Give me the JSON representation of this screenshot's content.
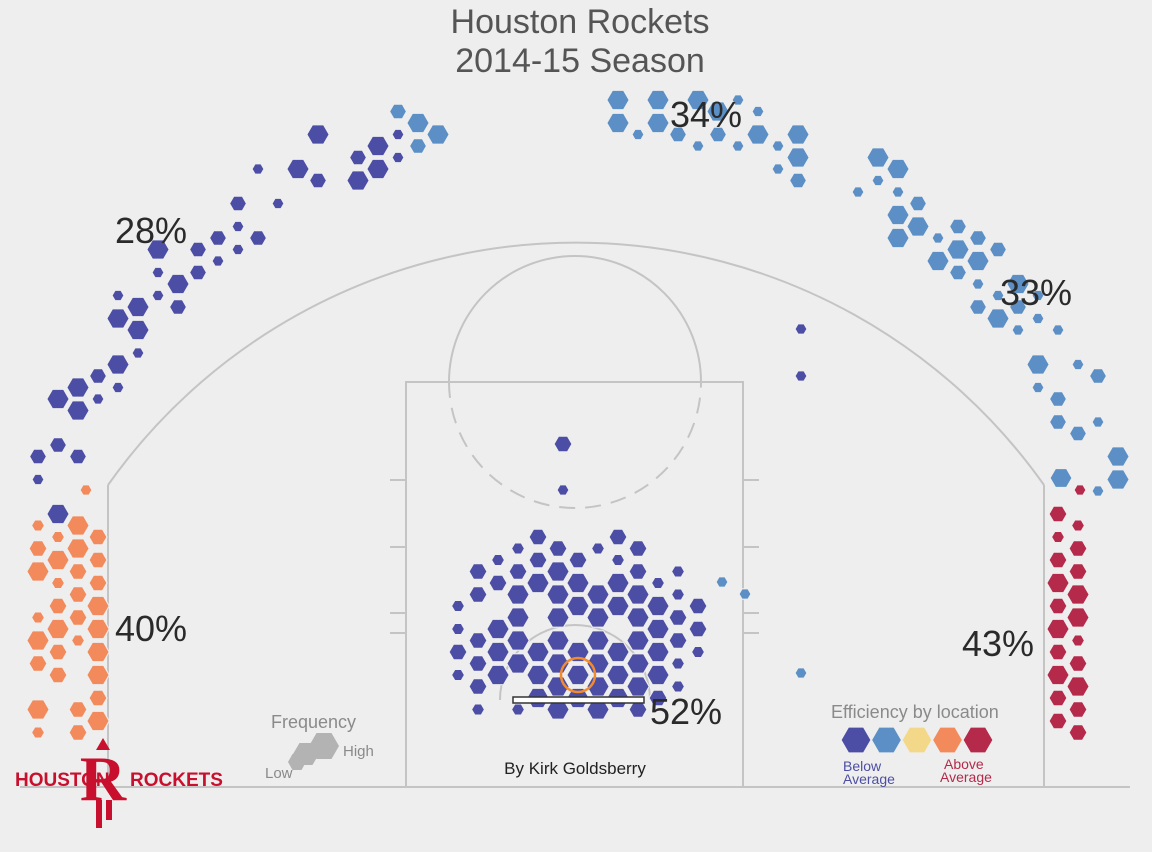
{
  "chart_data": {
    "type": "heatmap",
    "subtype": "hexbin shot chart",
    "title_lines": [
      "Houston Rockets",
      "2014-15 Season"
    ],
    "efficiency_classes": [
      "well_below",
      "below",
      "average",
      "above",
      "well_above"
    ],
    "colors": {
      "well_below": "#4b4ea4",
      "below": "#5b8fc6",
      "average": "#f4d88a",
      "above": "#f28a5c",
      "well_above": "#b5294a"
    },
    "zones": [
      {
        "id": "left-corner-three",
        "label": "40%",
        "class": "above"
      },
      {
        "id": "left-wing-three",
        "label": "28%",
        "class": "well_below"
      },
      {
        "id": "top-of-key-three",
        "label": "34%",
        "class": "below"
      },
      {
        "id": "right-wing-three",
        "label": "33%",
        "class": "below"
      },
      {
        "id": "right-corner-three",
        "label": "43%",
        "class": "well_above"
      },
      {
        "id": "restricted-area",
        "label": "52%",
        "class": "well_below"
      }
    ],
    "legend": {
      "frequency": {
        "title": "Frequency",
        "low": "Low",
        "high": "High"
      },
      "efficiency": {
        "title": "Efficiency by location",
        "low_label": [
          "Below",
          "Average"
        ],
        "high_label": [
          "Above",
          "Average"
        ]
      }
    },
    "credit": "By Kirk Goldsberry",
    "team_logo": {
      "left_word": "HOUSTON",
      "right_word": "ROCKETS",
      "letter": "R",
      "color": "#c8102e"
    }
  }
}
